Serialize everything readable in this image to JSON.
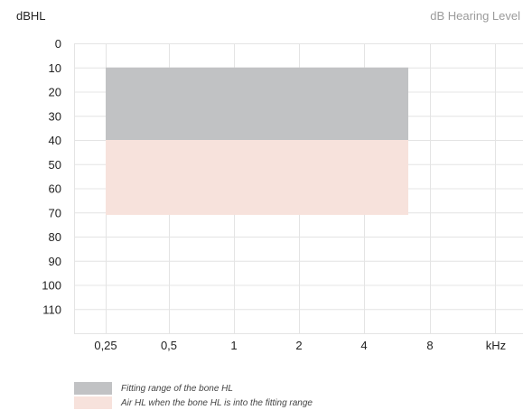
{
  "chart_data": {
    "type": "area",
    "ylabel": "dBHL",
    "right_title": "dB Hearing Level",
    "x_unit_label": "kHz",
    "x_categories": [
      "0,25",
      "0,5",
      "1",
      "2",
      "4",
      "8"
    ],
    "y_ticks": [
      "0",
      "10",
      "20",
      "30",
      "40",
      "50",
      "60",
      "70",
      "80",
      "90",
      "100",
      "110"
    ],
    "ylim": [
      0,
      120
    ],
    "y_inverted": true,
    "grid": true,
    "bands": [
      {
        "name": "Fitting range of the bone HL",
        "color": "#c1c2c4",
        "x_start": "0,25",
        "x_end_approx_octave_above_4": 0.7,
        "y_top": 10,
        "y_bottom": 40
      },
      {
        "name": "Air HL when the bone HL is into the fitting range",
        "color": "#f7e2dc",
        "x_start": "0,25",
        "x_end_approx_octave_above_4": 0.7,
        "y_top": 40,
        "y_bottom": 71
      }
    ]
  },
  "legend": [
    {
      "label": "Fitting range of the bone HL",
      "color": "#c1c2c4"
    },
    {
      "label": "Air HL when the bone HL is into the fitting range",
      "color": "#f7e2dc"
    }
  ]
}
